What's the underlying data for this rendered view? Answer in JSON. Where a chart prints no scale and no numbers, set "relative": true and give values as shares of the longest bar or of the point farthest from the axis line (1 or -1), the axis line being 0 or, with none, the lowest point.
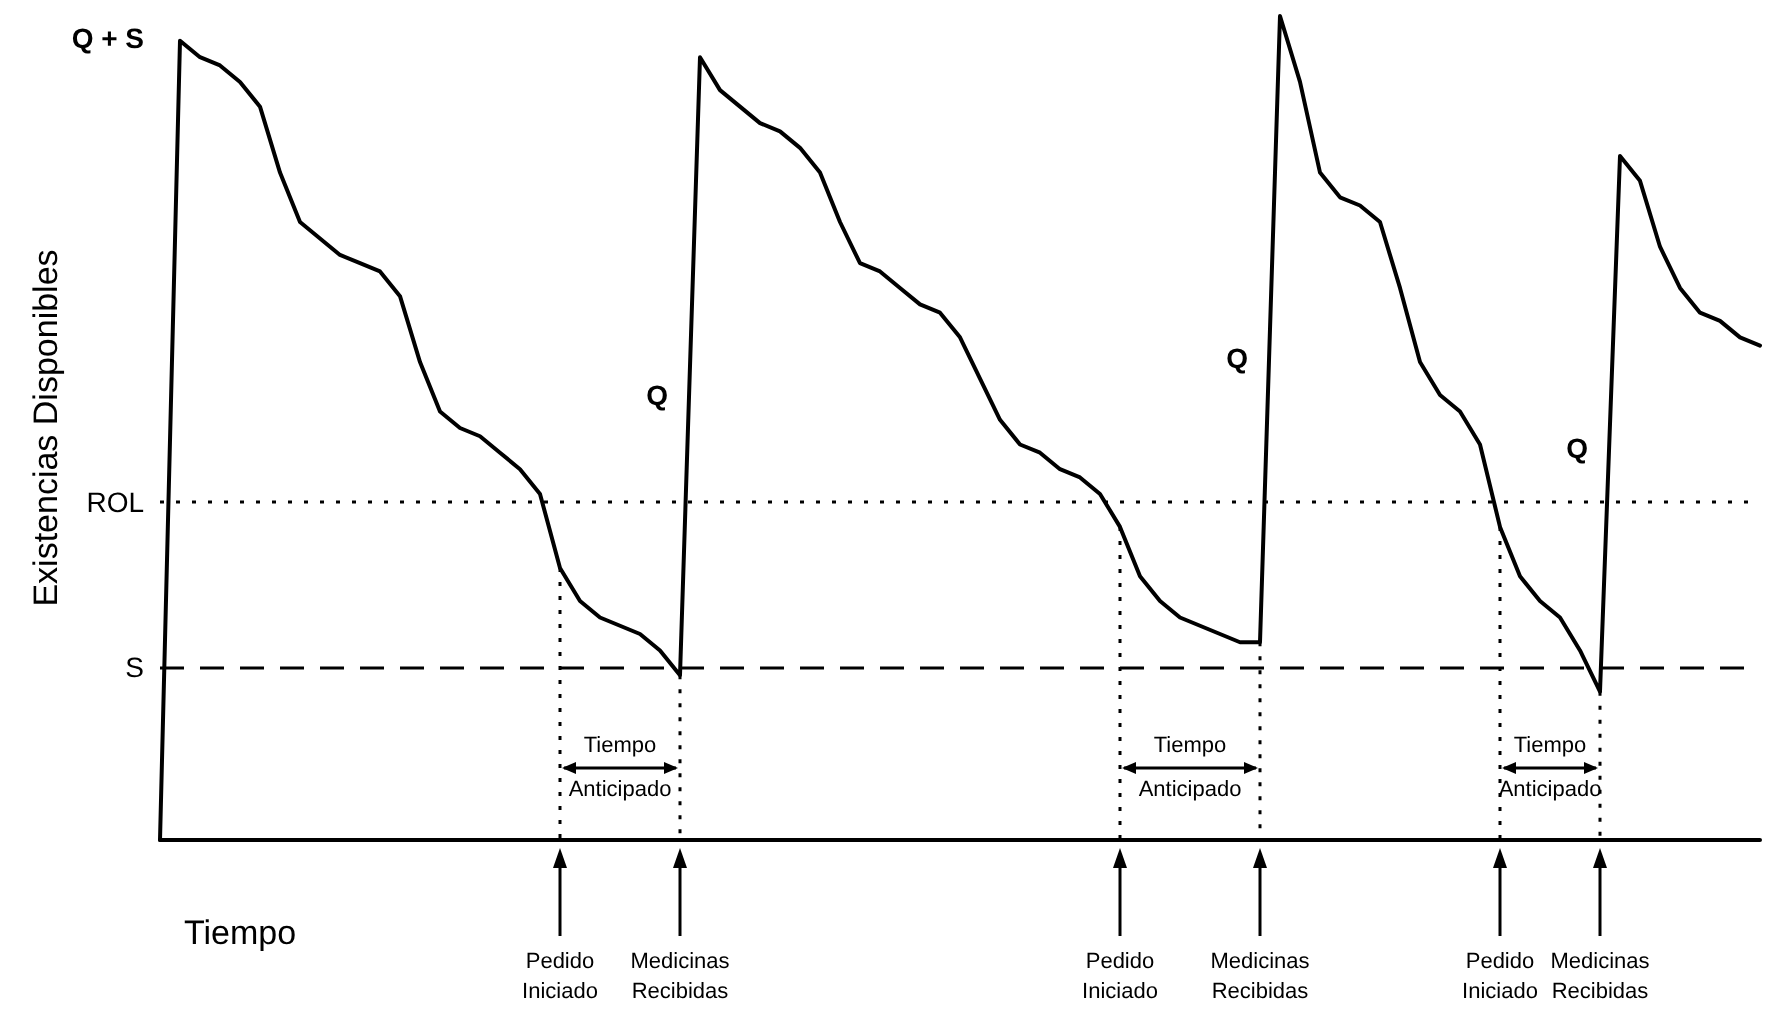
{
  "chart_data": {
    "type": "line",
    "relative": true,
    "xlabel": "Tiempo",
    "ylabel": "Existencias Disponibles",
    "color": "#000000",
    "marker": "none",
    "line_style": "solid",
    "categories": [
      null,
      null,
      null,
      null,
      null,
      null,
      null,
      null,
      null,
      null,
      null,
      null,
      null,
      null,
      null,
      null,
      null,
      null,
      null,
      null,
      null,
      null,
      null,
      null,
      null,
      null,
      null,
      null,
      null,
      null,
      null,
      null,
      null,
      null,
      null,
      null,
      null,
      null,
      null,
      null,
      null,
      null,
      null,
      null,
      null,
      null,
      null,
      null,
      null,
      null,
      null,
      null,
      null,
      null,
      null,
      null,
      null,
      null,
      null,
      null,
      null,
      null,
      null,
      null,
      null,
      null,
      null,
      null,
      null,
      null,
      null,
      null,
      null,
      null,
      null,
      null,
      null,
      null,
      null,
      null,
      null
    ],
    "values": [
      0,
      0.97,
      0.95,
      0.94,
      0.92,
      0.89,
      0.81,
      0.75,
      0.73,
      0.71,
      0.7,
      0.69,
      0.66,
      0.58,
      0.52,
      0.5,
      0.49,
      0.47,
      0.45,
      0.42,
      0.33,
      0.29,
      0.27,
      0.26,
      0.25,
      0.23,
      0.2,
      0.95,
      0.91,
      0.89,
      0.87,
      0.86,
      0.84,
      0.81,
      0.75,
      0.7,
      0.69,
      0.67,
      0.65,
      0.64,
      0.61,
      0.56,
      0.51,
      0.48,
      0.47,
      0.45,
      0.44,
      0.42,
      0.38,
      0.32,
      0.29,
      0.27,
      0.26,
      0.25,
      0.24,
      0.24,
      1.0,
      0.92,
      0.81,
      0.78,
      0.77,
      0.75,
      0.67,
      0.58,
      0.54,
      0.52,
      0.48,
      0.38,
      0.32,
      0.29,
      0.27,
      0.23,
      0.18,
      0.83,
      0.8,
      0.72,
      0.67,
      0.64,
      0.63,
      0.61,
      0.6
    ],
    "ref_lines": [
      {
        "axis": "y",
        "value": 0.41,
        "label": "ROL",
        "line_style": "dotted",
        "color": "#000000"
      },
      {
        "axis": "y",
        "value": 0.21,
        "label": "S",
        "line_style": "dashed",
        "color": "#000000"
      }
    ],
    "annotations": [
      "Q + S",
      "Q",
      "Q",
      "Q",
      "Tiempo Anticipado",
      "Pedido Iniciado",
      "Medicinas Recibidas",
      "Tiempo Anticipado",
      "Pedido Iniciado",
      "Medicinas Recibidas",
      "Tiempo Anticipado",
      "Pedido Iniciado",
      "Medicinas Recibidas"
    ]
  }
}
